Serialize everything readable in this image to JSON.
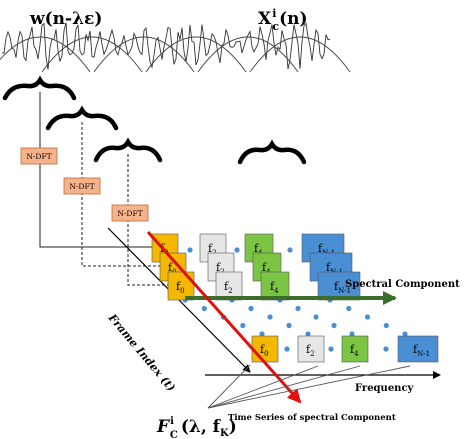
{
  "labels": {
    "window": "w(n-λε)",
    "signal_main": "X",
    "signal_sup": "i",
    "signal_sub": "c",
    "signal_arg": "(n)",
    "spectral_component": "Spectral Component",
    "frame_index": "Frame Index (t)",
    "frequency": "Frequency",
    "time_series": "Time Series of spectral Component",
    "formula_main": "F",
    "formula_sup": "i",
    "formula_sub": "C",
    "formula_args": "(λ, f",
    "formula_args_sub": "K",
    "formula_close": ")"
  },
  "ndft_label": "N-DFT",
  "dot": "•",
  "frames": [
    {
      "cells": [
        "f0",
        "f2",
        "f4",
        "fN-1"
      ]
    },
    {
      "cells": [
        "f0",
        "f2",
        "f4",
        "fN-1"
      ]
    },
    {
      "cells": [
        "f0",
        "f2",
        "f4",
        "fN-1"
      ]
    }
  ],
  "bottom_cells": [
    "f0",
    "f2",
    "f4",
    "fN-1"
  ],
  "colors": {
    "f0": "#f5b800",
    "f2": "#e6e6e6",
    "f4": "#7cc444",
    "fN-1": "#4a8fd4",
    "ndft": "#f6b28a",
    "red_arrow": "#e01010",
    "green_arrow": "#3b6e2a",
    "dots": "#4a8fd4"
  }
}
